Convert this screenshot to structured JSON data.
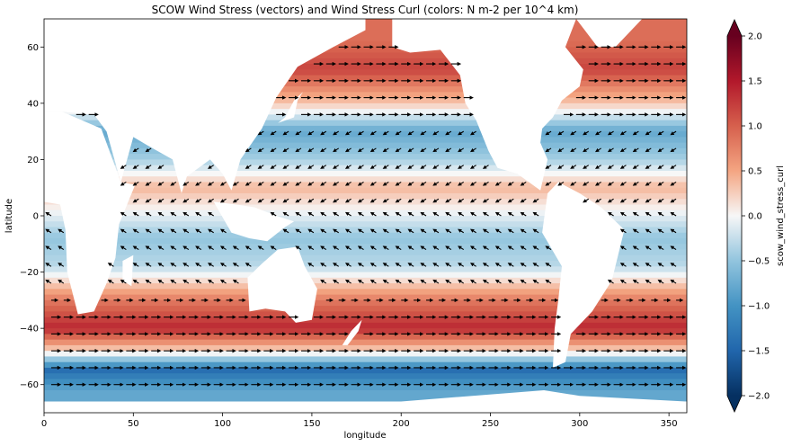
{
  "chart_data": {
    "type": "heatmap",
    "title": "SCOW Wind Stress (vectors) and Wind Stress Curl (colors: N m-2 per 10^4 km)",
    "xlabel": "longitude",
    "ylabel": "latitude",
    "xlim": [
      0,
      360
    ],
    "ylim": [
      -70,
      70
    ],
    "xticks": [
      0,
      50,
      100,
      150,
      200,
      250,
      300,
      350
    ],
    "yticks": [
      -60,
      -40,
      -20,
      0,
      20,
      40,
      60
    ],
    "colorbar": {
      "label": "scow_wind_stress_curl",
      "range": [
        -2.0,
        2.0
      ],
      "ticks": [
        "-2.0",
        "-1.5",
        "-1.0",
        "-0.5",
        "0.0",
        "0.5",
        "1.0",
        "1.5",
        "2.0"
      ],
      "colormap": "RdBu_r",
      "extend": "both"
    },
    "series": [
      {
        "layer": "colors",
        "approx_zonal_band_values": [
          {
            "lat": 62,
            "value": 0.9
          },
          {
            "lat": 52,
            "value": 1.2
          },
          {
            "lat": 40,
            "value": 0.3
          },
          {
            "lat": 30,
            "value": -0.8
          },
          {
            "lat": 20,
            "value": -0.4
          },
          {
            "lat": 10,
            "value": 0.4
          },
          {
            "lat": 0,
            "value": -0.1
          },
          {
            "lat": -8,
            "value": -0.5
          },
          {
            "lat": -18,
            "value": -0.3
          },
          {
            "lat": -30,
            "value": 0.8
          },
          {
            "lat": -40,
            "value": 1.4
          },
          {
            "lat": -48,
            "value": 0.2
          },
          {
            "lat": -55,
            "value": -1.4
          },
          {
            "lat": -62,
            "value": -0.8
          }
        ]
      },
      {
        "layer": "vectors",
        "description_band_directions": [
          {
            "lat": 45,
            "direction": "eastward"
          },
          {
            "lat": 15,
            "direction": "south-westward"
          },
          {
            "lat": -15,
            "direction": "north-westward"
          },
          {
            "lat": -45,
            "direction": "eastward"
          }
        ]
      }
    ]
  },
  "colors": {
    "ocean_low": "#053061",
    "ocean_mid": "#f7f7f7",
    "ocean_high": "#67001f",
    "land": "#ffffff",
    "arrow": "#000000"
  }
}
